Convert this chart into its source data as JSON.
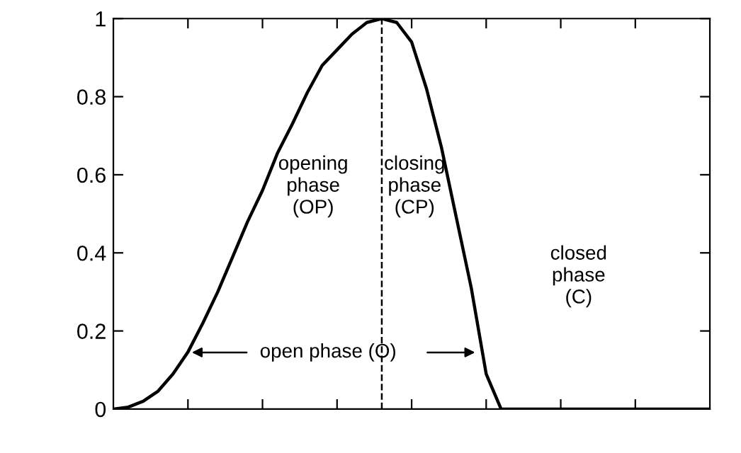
{
  "chart_data": {
    "type": "line",
    "categories": [
      null,
      null,
      null,
      null,
      null,
      null,
      null,
      null,
      null,
      null,
      null,
      null,
      null,
      null,
      null,
      null,
      null,
      null,
      null,
      null,
      null,
      null,
      null,
      null,
      null,
      null,
      null,
      null,
      null,
      null,
      null,
      null,
      null,
      null,
      null,
      null,
      null,
      null,
      null,
      null,
      null
    ],
    "series": [
      {
        "color": "#000000",
        "values": [
          0,
          0.005,
          0.02,
          0.046,
          0.09,
          0.146,
          0.22,
          0.3,
          0.39,
          0.48,
          0.56,
          0.655,
          0.73,
          0.81,
          0.88,
          0.92,
          0.96,
          0.99,
          1.0,
          0.99,
          0.94,
          0.82,
          0.67,
          0.49,
          0.31,
          0.09,
          0,
          0,
          0,
          0,
          0,
          0,
          0,
          0,
          0,
          0,
          0,
          0,
          0,
          0,
          0
        ]
      }
    ],
    "ylim": [
      0,
      1
    ],
    "yticks": [
      0,
      0.2,
      0.4,
      0.6,
      0.8,
      1
    ],
    "annotations": [
      "opening\nphase\n(OP)",
      "closing\nphase\n(CP)",
      "closed\nphase\n(C)",
      "open phase (O)"
    ],
    "grid": false,
    "legend": false,
    "marker": "none",
    "line_style": "solid"
  }
}
